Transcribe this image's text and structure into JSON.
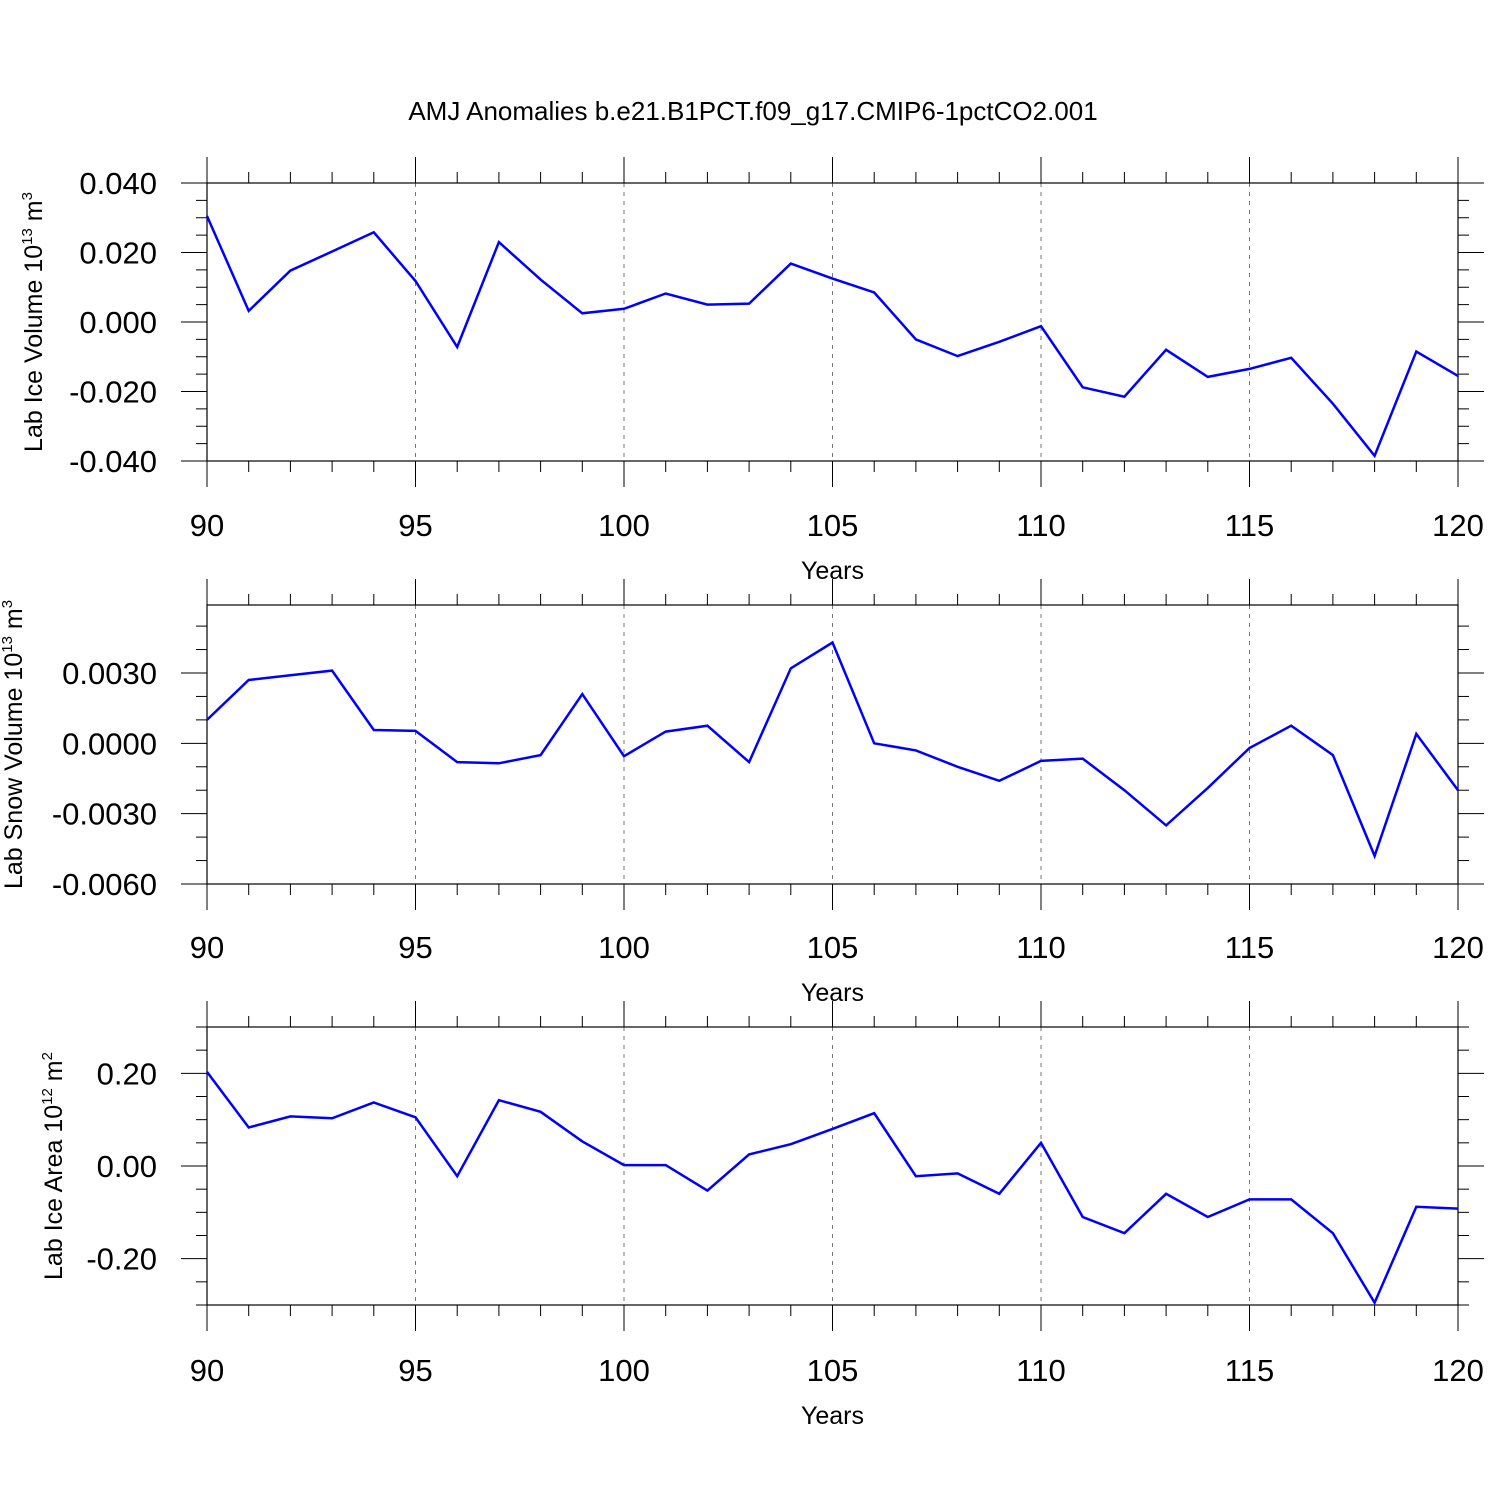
{
  "chart_data": {
    "title": "AMJ Anomalies b.e21.B1PCT.f09_g17.CMIP6-1pctCO2.001",
    "colors": {
      "series": "#0000ff",
      "axis": "#000000",
      "grid": "#777777"
    },
    "panels": [
      {
        "type": "line",
        "ylabel": "Lab Ice Volume 10",
        "ylabel_exp": "13",
        "ylabel_unit": " m",
        "ylabel_unit_exp": "3",
        "xlabel": "Years",
        "xlim": [
          90,
          120
        ],
        "ylim": [
          -0.04,
          0.04
        ],
        "xticks": [
          90,
          95,
          100,
          105,
          110,
          115,
          120
        ],
        "xtick_labels": [
          "90",
          "95",
          "100",
          "105",
          "110",
          "115",
          "120"
        ],
        "yticks": [
          0.04,
          0.02,
          0.0,
          -0.02,
          -0.04
        ],
        "ytick_labels": [
          "0.040",
          "0.020",
          "0.000",
          "-0.020",
          "-0.040"
        ],
        "y_minor_step": 0.005,
        "x": [
          90,
          91,
          92,
          93,
          94,
          95,
          96,
          97,
          98,
          99,
          100,
          101,
          102,
          103,
          104,
          105,
          106,
          107,
          108,
          109,
          110,
          111,
          112,
          113,
          114,
          115,
          116,
          117,
          118,
          119,
          120
        ],
        "values": [
          0.0305,
          0.0032,
          0.0148,
          0.0203,
          0.0258,
          0.0118,
          -0.0072,
          0.023,
          0.0122,
          0.0025,
          0.0038,
          0.0082,
          0.005,
          0.0053,
          0.0168,
          0.0125,
          0.0085,
          -0.005,
          -0.0098,
          -0.0057,
          -0.0012,
          -0.0188,
          -0.0215,
          -0.008,
          -0.0158,
          -0.0135,
          -0.0103,
          -0.0235,
          -0.0385,
          -0.0085,
          -0.0155
        ]
      },
      {
        "type": "line",
        "ylabel": "Lab Snow Volume 10",
        "ylabel_exp": "13",
        "ylabel_unit": " m",
        "ylabel_unit_exp": "3",
        "xlabel": "Years",
        "xlim": [
          90,
          120
        ],
        "ylim": [
          -0.006,
          0.0059
        ],
        "xticks": [
          90,
          95,
          100,
          105,
          110,
          115,
          120
        ],
        "xtick_labels": [
          "90",
          "95",
          "100",
          "105",
          "110",
          "115",
          "120"
        ],
        "yticks": [
          0.003,
          0.0,
          -0.003,
          -0.006
        ],
        "ytick_labels": [
          "0.0030",
          "0.0000",
          "-0.0030",
          "-0.0060"
        ],
        "y_minor_step": 0.001,
        "x": [
          90,
          91,
          92,
          93,
          94,
          95,
          96,
          97,
          98,
          99,
          100,
          101,
          102,
          103,
          104,
          105,
          106,
          107,
          108,
          109,
          110,
          111,
          112,
          113,
          114,
          115,
          116,
          117,
          118,
          119,
          120
        ],
        "values": [
          0.001,
          0.0027,
          0.0029,
          0.0031,
          0.00057,
          0.00053,
          -0.0008,
          -0.00085,
          -0.0005,
          0.0021,
          -0.00055,
          0.0005,
          0.00075,
          -0.0008,
          0.0032,
          0.0043,
          0.0,
          -0.0003,
          -0.001,
          -0.0016,
          -0.00075,
          -0.00065,
          -0.002,
          -0.0035,
          -0.0019,
          -0.0002,
          0.00075,
          -0.0005,
          -0.0048,
          0.0004,
          -0.002
        ]
      },
      {
        "type": "line",
        "ylabel": "Lab Ice Area 10",
        "ylabel_exp": "12",
        "ylabel_unit": " m",
        "ylabel_unit_exp": "2",
        "xlabel": "Years",
        "xlim": [
          90,
          120
        ],
        "ylim": [
          -0.3,
          0.3
        ],
        "xticks": [
          90,
          95,
          100,
          105,
          110,
          115,
          120
        ],
        "xtick_labels": [
          "90",
          "95",
          "100",
          "105",
          "110",
          "115",
          "120"
        ],
        "yticks": [
          0.2,
          0.0,
          -0.2
        ],
        "ytick_labels": [
          "0.20",
          "0.00",
          "-0.20"
        ],
        "y_minor_step": 0.05,
        "x": [
          90,
          91,
          92,
          93,
          94,
          95,
          96,
          97,
          98,
          99,
          100,
          101,
          102,
          103,
          104,
          105,
          106,
          107,
          108,
          109,
          110,
          111,
          112,
          113,
          114,
          115,
          116,
          117,
          118,
          119,
          120
        ],
        "values": [
          0.203,
          0.083,
          0.107,
          0.103,
          0.137,
          0.105,
          -0.022,
          0.142,
          0.117,
          0.053,
          0.002,
          0.002,
          -0.053,
          0.025,
          0.047,
          0.08,
          0.114,
          -0.022,
          -0.016,
          -0.06,
          0.05,
          -0.11,
          -0.145,
          -0.06,
          -0.11,
          -0.072,
          -0.072,
          -0.145,
          -0.295,
          -0.088,
          -0.092
        ]
      }
    ]
  }
}
